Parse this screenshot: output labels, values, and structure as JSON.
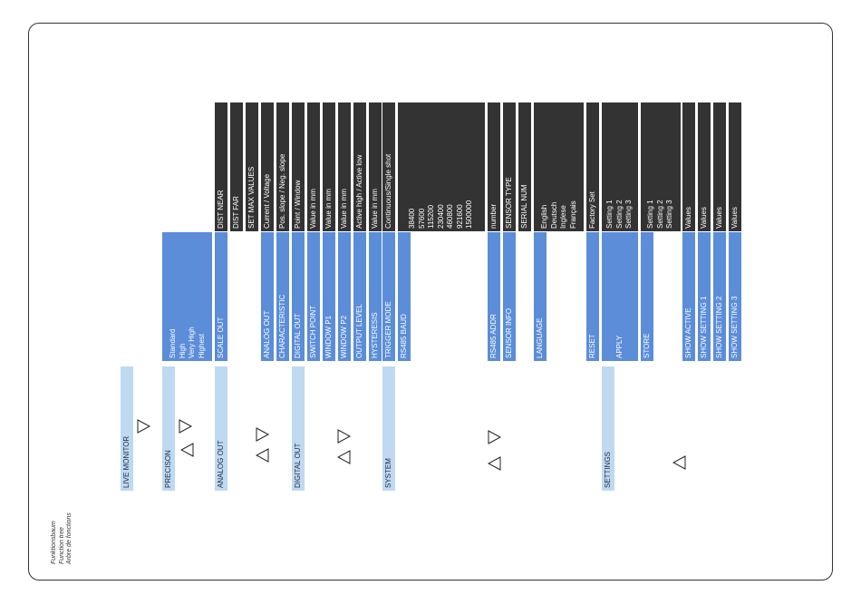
{
  "caption": [
    "Funktionsbaum",
    "Function tree",
    "Arbre de fonctions"
  ],
  "level1": [
    {
      "id": "live-monitor",
      "label": [
        "LIVE MONITOR"
      ]
    },
    {
      "id": "precison",
      "label": [
        "PRECISON"
      ]
    },
    {
      "id": "analog-out",
      "label": [
        "ANALOG OUT"
      ]
    },
    {
      "id": "digital-out",
      "label": [
        "DIGITAL OUT"
      ]
    },
    {
      "id": "system",
      "label": [
        "SYSTEM"
      ]
    },
    {
      "id": "settings",
      "label": [
        "SETTINGS"
      ]
    }
  ],
  "level2": [
    {
      "id": "precision-options",
      "label": [
        "Standard",
        "High",
        "Very High",
        "Highest"
      ]
    },
    {
      "id": "scale-out",
      "label": [
        "SCALE OUT"
      ]
    },
    {
      "id": "analog-out",
      "label": [
        "ANALOG OUT"
      ]
    },
    {
      "id": "characteristic",
      "label": [
        "CHARACTERISTIC"
      ]
    },
    {
      "id": "digital-out",
      "label": [
        "DIGITAL OUT"
      ]
    },
    {
      "id": "switch-point",
      "label": [
        "SWITCH POINT"
      ]
    },
    {
      "id": "window-p1",
      "label": [
        "WINDOW P1"
      ]
    },
    {
      "id": "window-p2",
      "label": [
        "WINDOW P2"
      ]
    },
    {
      "id": "output-level",
      "label": [
        "OUTPUT LEVEL"
      ]
    },
    {
      "id": "hysteresis",
      "label": [
        "HYSTERESIS"
      ]
    },
    {
      "id": "trigger-mode",
      "label": [
        "TRIGGER MODE"
      ]
    },
    {
      "id": "rs485-baud",
      "label": [
        "RS485 BAUD"
      ]
    },
    {
      "id": "rs485-addr",
      "label": [
        "RS485 ADDR"
      ]
    },
    {
      "id": "sensor-info",
      "label": [
        "SENSOR INFO"
      ]
    },
    {
      "id": "language",
      "label": [
        "LANGUAGE"
      ]
    },
    {
      "id": "reset",
      "label": [
        "RESET"
      ]
    },
    {
      "id": "apply",
      "label": [
        "APPLY"
      ]
    },
    {
      "id": "store",
      "label": [
        "STORE"
      ]
    },
    {
      "id": "show-active",
      "label": [
        "SHOW ACTIVE"
      ]
    },
    {
      "id": "show-setting-1",
      "label": [
        "SHOW SETTING 1"
      ]
    },
    {
      "id": "show-setting-2",
      "label": [
        "SHOW SETTING 2"
      ]
    },
    {
      "id": "show-setting-3",
      "label": [
        "SHOW SETTING 3"
      ]
    }
  ],
  "level3": [
    {
      "id": "dist-near",
      "label": [
        "DIST NEAR"
      ]
    },
    {
      "id": "dist-far",
      "label": [
        "DIST FAR"
      ]
    },
    {
      "id": "set-max-values",
      "label": [
        "SET MAX VALUES"
      ]
    },
    {
      "id": "current-voltage",
      "label": [
        "Current / Voltage"
      ]
    },
    {
      "id": "slope",
      "label": [
        "Pos. slope / Neg. slope"
      ]
    },
    {
      "id": "point-window",
      "label": [
        "Point / Window"
      ]
    },
    {
      "id": "value-switch-point",
      "label": [
        "Value in mm"
      ]
    },
    {
      "id": "value-window-p1",
      "label": [
        "Value in mm"
      ]
    },
    {
      "id": "value-window-p2",
      "label": [
        "Value in mm"
      ]
    },
    {
      "id": "active-high-low",
      "label": [
        "Active high / Active low"
      ]
    },
    {
      "id": "value-hysteresis",
      "label": [
        "Value in mm"
      ]
    },
    {
      "id": "continuous-single",
      "label": [
        "Continuous/Single shot"
      ]
    },
    {
      "id": "baud-rates",
      "label": [
        "38400",
        "57600",
        "115200",
        "230400",
        "460800",
        "921600",
        "1500000"
      ]
    },
    {
      "id": "addr-number",
      "label": [
        "number"
      ]
    },
    {
      "id": "sensor-type",
      "label": [
        "SENSOR TYPE"
      ]
    },
    {
      "id": "serial-num",
      "label": [
        "SERIAL NUM"
      ]
    },
    {
      "id": "languages",
      "label": [
        "English",
        "Deutsch",
        "Inglese",
        "Français"
      ]
    },
    {
      "id": "factory-set",
      "label": [
        "Factory Set"
      ]
    },
    {
      "id": "apply-settings",
      "label": [
        "Setting 1",
        "Setting 2",
        "Setting 3"
      ]
    },
    {
      "id": "store-settings",
      "label": [
        "Setting 1",
        "Setting 2",
        "Setting 3"
      ]
    },
    {
      "id": "values-active",
      "label": [
        "Values"
      ]
    },
    {
      "id": "values-setting-1",
      "label": [
        "Values"
      ]
    },
    {
      "id": "values-setting-2",
      "label": [
        "Values"
      ]
    },
    {
      "id": "values-setting-3",
      "label": [
        "Values"
      ]
    }
  ],
  "arrows": [
    {
      "id": "live-monitor-right",
      "direction": "right"
    },
    {
      "id": "precison-right",
      "direction": "right"
    },
    {
      "id": "precison-left",
      "direction": "left"
    },
    {
      "id": "analog-out-right",
      "direction": "right"
    },
    {
      "id": "analog-out-left",
      "direction": "left"
    },
    {
      "id": "digital-out-right",
      "direction": "right"
    },
    {
      "id": "digital-out-left",
      "direction": "left"
    },
    {
      "id": "system-right",
      "direction": "right"
    },
    {
      "id": "system-left",
      "direction": "left"
    },
    {
      "id": "settings-left",
      "direction": "left"
    }
  ]
}
